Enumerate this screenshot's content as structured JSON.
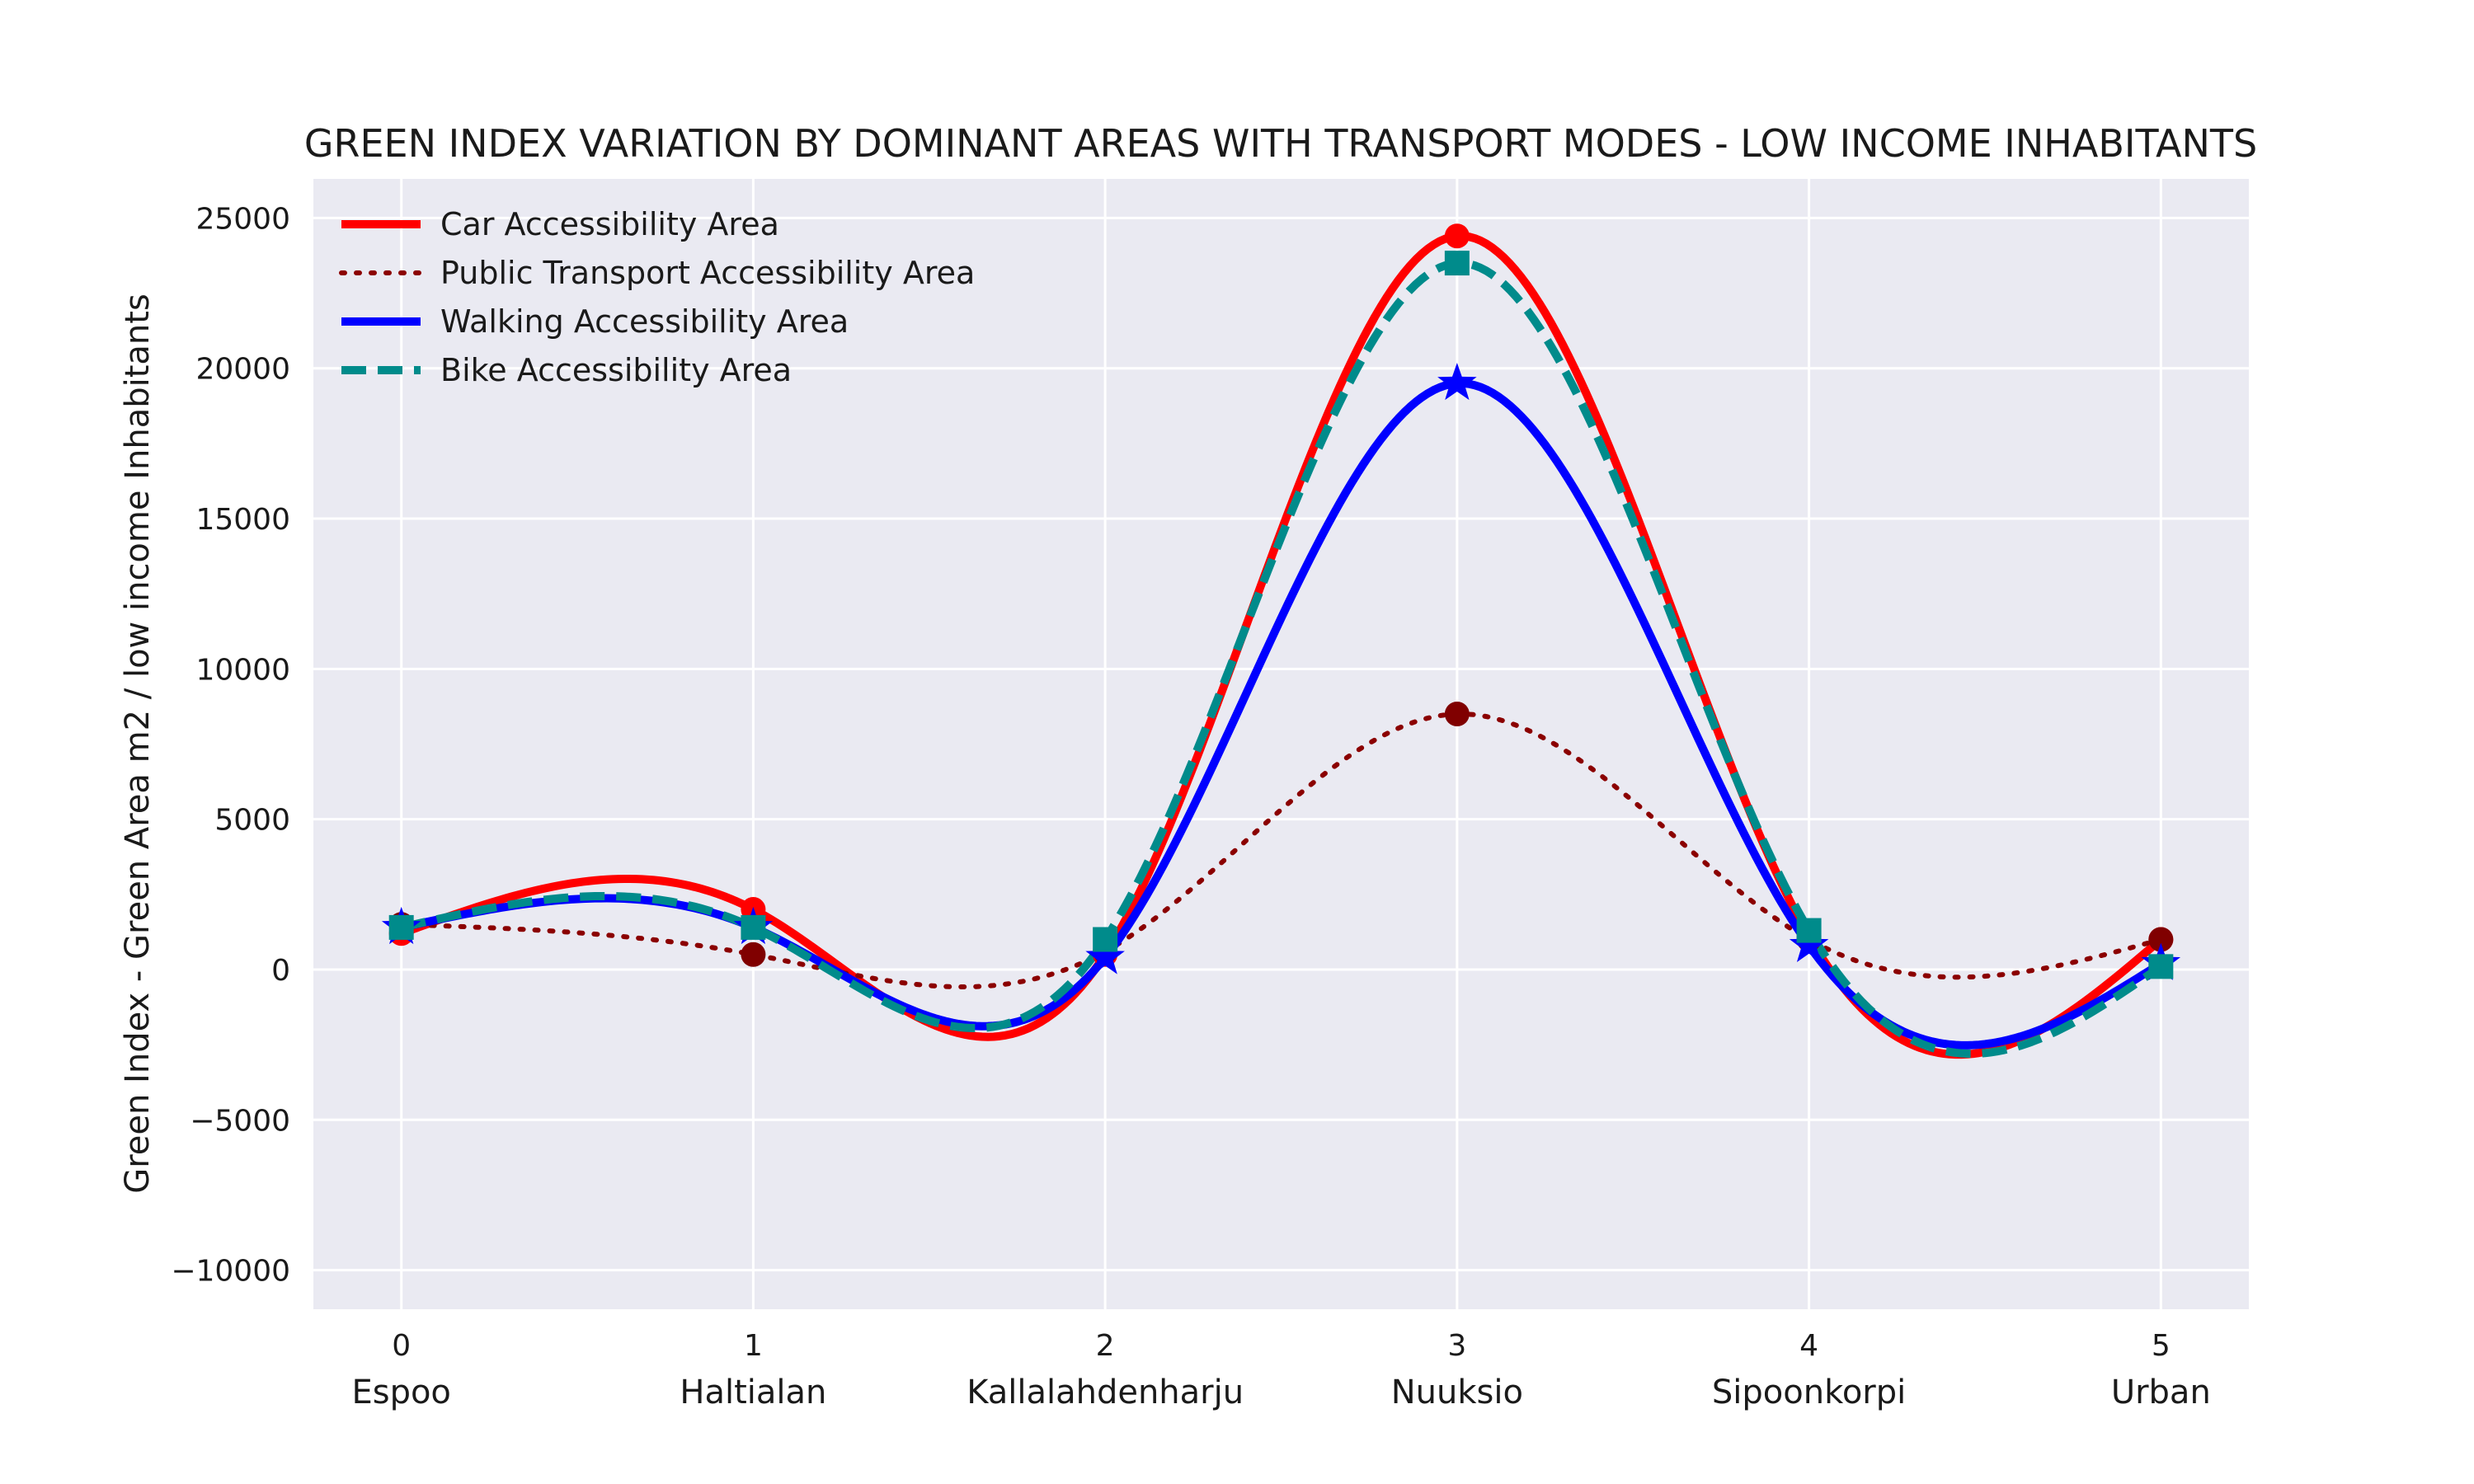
{
  "chart_data": {
    "type": "line",
    "title": "GREEN INDEX VARIATION BY DOMINANT AREAS WITH TRANSPORT MODES - LOW INCOME INHABITANTS",
    "xlabel": "",
    "ylabel": "Green Index - Green Area m2 / low income Inhabitants",
    "x": [
      0,
      1,
      2,
      3,
      4,
      5
    ],
    "x_ticks": [
      "0",
      "1",
      "2",
      "3",
      "4",
      "5"
    ],
    "categories": [
      "Espoo",
      "Haltialan",
      "Kallalahdenharju",
      "Nuuksio",
      "Sipoonkorpi",
      "Urban"
    ],
    "y_ticks": [
      25000,
      20000,
      15000,
      10000,
      5000,
      0,
      -5000,
      -10000
    ],
    "y_tick_labels": [
      "25000",
      "20000",
      "15000",
      "10000",
      "5000",
      "0",
      "−5000",
      "−10000"
    ],
    "xlim": [
      -0.25,
      5.25
    ],
    "ylim": [
      -11300,
      26300
    ],
    "grid": true,
    "legend_position": "top-left",
    "background": "#eaeaf2",
    "series": [
      {
        "name": "Car Accessibility Area",
        "values": [
          1200,
          2000,
          500,
          24400,
          1100,
          1000
        ],
        "color": "#ff0000",
        "line_style": "solid",
        "marker": "circle",
        "marker_color": "#ff0000"
      },
      {
        "name": "Public Transport Accessibility Area",
        "values": [
          1500,
          500,
          600,
          8500,
          1000,
          1000
        ],
        "color": "#8b0000",
        "line_style": "dotted",
        "marker": "circle",
        "marker_color": "#800000"
      },
      {
        "name": "Walking Accessibility Area",
        "values": [
          1400,
          1400,
          400,
          19500,
          800,
          200
        ],
        "color": "#0000ff",
        "line_style": "solid",
        "marker": "star",
        "marker_color": "#0000ff"
      },
      {
        "name": "Bike Accessibility Area",
        "values": [
          1400,
          1400,
          1000,
          23500,
          1300,
          100
        ],
        "color": "#008b8b",
        "line_style": "dashed",
        "marker": "square",
        "marker_color": "#008b8b"
      }
    ]
  }
}
